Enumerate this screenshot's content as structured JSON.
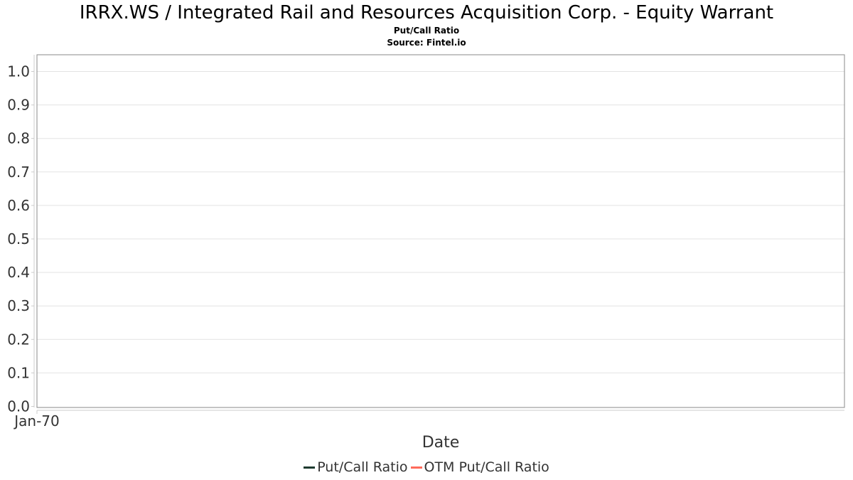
{
  "header": {
    "title": "IRRX.WS / Integrated Rail and Resources Acquisition Corp. - Equity Warrant",
    "subtitle": "Put/Call Ratio",
    "source": "Source: Fintel.io"
  },
  "chart_data": {
    "type": "line",
    "title": "IRRX.WS / Integrated Rail and Resources Acquisition Corp. - Equity Warrant",
    "subtitle": "Put/Call Ratio",
    "xlabel": "Date",
    "ylabel": "",
    "ylim": [
      0.0,
      1.05
    ],
    "y_ticks": [
      "0.0",
      "0.1",
      "0.2",
      "0.3",
      "0.4",
      "0.5",
      "0.6",
      "0.7",
      "0.8",
      "0.9",
      "1.0"
    ],
    "x_ticks": [
      "Jan-70"
    ],
    "grid": true,
    "legend_position": "bottom-center",
    "series": [
      {
        "name": "Put/Call Ratio",
        "color": "#1e3a2f",
        "values": []
      },
      {
        "name": "OTM Put/Call Ratio",
        "color": "#ff6b5b",
        "values": []
      }
    ]
  }
}
